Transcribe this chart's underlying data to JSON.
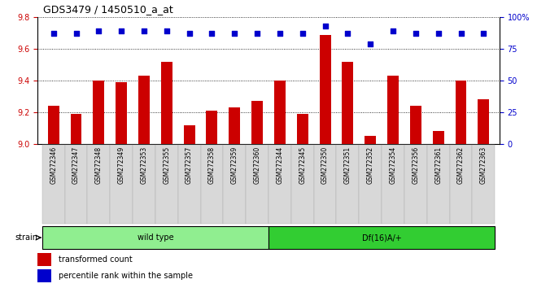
{
  "title": "GDS3479 / 1450510_a_at",
  "samples": [
    "GSM272346",
    "GSM272347",
    "GSM272348",
    "GSM272349",
    "GSM272353",
    "GSM272355",
    "GSM272357",
    "GSM272358",
    "GSM272359",
    "GSM272360",
    "GSM272344",
    "GSM272345",
    "GSM272350",
    "GSM272351",
    "GSM272352",
    "GSM272354",
    "GSM272356",
    "GSM272361",
    "GSM272362",
    "GSM272363"
  ],
  "bar_values": [
    9.24,
    9.19,
    9.4,
    9.39,
    9.43,
    9.52,
    9.12,
    9.21,
    9.23,
    9.27,
    9.4,
    9.19,
    9.69,
    9.52,
    9.05,
    9.43,
    9.24,
    9.08,
    9.4,
    9.28
  ],
  "dot_values": [
    87,
    87,
    89,
    89,
    89,
    89,
    87,
    87,
    87,
    87,
    87,
    87,
    93,
    87,
    79,
    89,
    87,
    87,
    87,
    87
  ],
  "group1_count": 10,
  "group1_label": "wild type",
  "group2_label": "Df(16)A/+",
  "group1_color": "#90EE90",
  "group2_color": "#32CD32",
  "bar_color": "#CC0000",
  "dot_color": "#0000CC",
  "ylim_left": [
    9.0,
    9.8
  ],
  "ylim_right": [
    0,
    100
  ],
  "yticks_left": [
    9.0,
    9.2,
    9.4,
    9.6,
    9.8
  ],
  "yticks_right": [
    0,
    25,
    50,
    75,
    100
  ],
  "bg_color": "#FFFFFF",
  "plot_bg_color": "#FFFFFF",
  "legend_items": [
    "transformed count",
    "percentile rank within the sample"
  ],
  "left_tick_color": "#CC0000",
  "right_tick_color": "#0000CC"
}
